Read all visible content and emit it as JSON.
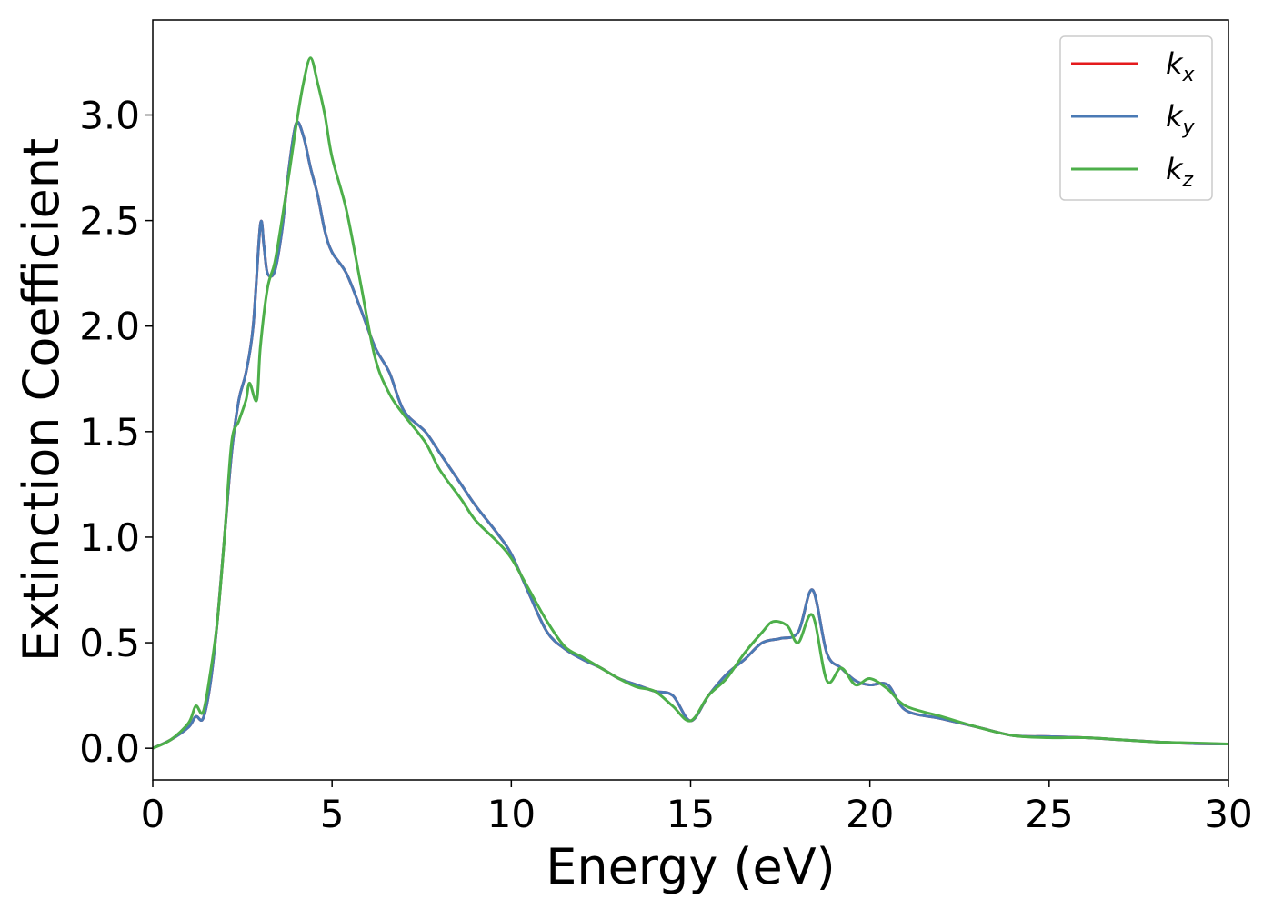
{
  "chart_data": {
    "type": "line",
    "title": "",
    "xlabel": "Energy (eV)",
    "ylabel": "Extinction Coefficient",
    "xlim": [
      0,
      30
    ],
    "ylim": [
      -0.15,
      3.45
    ],
    "xticks": [
      0,
      5,
      10,
      15,
      20,
      25,
      30
    ],
    "xtick_labels": [
      "0",
      "5",
      "10",
      "15",
      "20",
      "25",
      "30"
    ],
    "yticks": [
      0.0,
      0.5,
      1.0,
      1.5,
      2.0,
      2.5,
      3.0
    ],
    "ytick_labels": [
      "0.0",
      "0.5",
      "1.0",
      "1.5",
      "2.0",
      "2.5",
      "3.0"
    ],
    "grid": false,
    "legend_position": "top-right",
    "series": [
      {
        "name": "k_x",
        "legend_base": "k",
        "legend_sub": "x",
        "color": "#e41a1c",
        "x": [
          0,
          0.5,
          1.0,
          1.2,
          1.4,
          1.6,
          1.8,
          2.0,
          2.2,
          2.4,
          2.6,
          2.8,
          3.0,
          3.1,
          3.2,
          3.4,
          3.6,
          3.8,
          4.0,
          4.2,
          4.4,
          4.6,
          4.8,
          5.0,
          5.4,
          5.8,
          6.2,
          6.6,
          7.0,
          7.6,
          8.0,
          8.6,
          9.0,
          9.6,
          10.0,
          10.5,
          11.0,
          11.5,
          12.0,
          12.5,
          13.0,
          13.5,
          14.0,
          14.5,
          15.0,
          15.5,
          16.0,
          16.5,
          17.0,
          17.5,
          18.0,
          18.4,
          18.8,
          19.2,
          19.6,
          20.0,
          20.5,
          21.0,
          22.0,
          23.0,
          24.0,
          25.0,
          26.0,
          27.0,
          28.0,
          29.0,
          30.0
        ],
        "y": [
          0.0,
          0.04,
          0.1,
          0.15,
          0.14,
          0.3,
          0.6,
          1.0,
          1.4,
          1.65,
          1.78,
          2.0,
          2.48,
          2.38,
          2.25,
          2.26,
          2.45,
          2.75,
          2.96,
          2.9,
          2.75,
          2.62,
          2.45,
          2.35,
          2.25,
          2.08,
          1.9,
          1.78,
          1.6,
          1.5,
          1.4,
          1.25,
          1.15,
          1.02,
          0.92,
          0.73,
          0.55,
          0.47,
          0.42,
          0.38,
          0.33,
          0.3,
          0.27,
          0.25,
          0.13,
          0.25,
          0.35,
          0.42,
          0.5,
          0.52,
          0.55,
          0.75,
          0.45,
          0.38,
          0.32,
          0.3,
          0.3,
          0.18,
          0.14,
          0.1,
          0.06,
          0.055,
          0.05,
          0.04,
          0.03,
          0.022,
          0.02
        ]
      },
      {
        "name": "k_y",
        "legend_base": "k",
        "legend_sub": "y",
        "color": "#4a7ab5",
        "x": [
          0,
          0.5,
          1.0,
          1.2,
          1.4,
          1.6,
          1.8,
          2.0,
          2.2,
          2.4,
          2.6,
          2.8,
          3.0,
          3.1,
          3.2,
          3.4,
          3.6,
          3.8,
          4.0,
          4.2,
          4.4,
          4.6,
          4.8,
          5.0,
          5.4,
          5.8,
          6.2,
          6.6,
          7.0,
          7.6,
          8.0,
          8.6,
          9.0,
          9.6,
          10.0,
          10.5,
          11.0,
          11.5,
          12.0,
          12.5,
          13.0,
          13.5,
          14.0,
          14.5,
          15.0,
          15.5,
          16.0,
          16.5,
          17.0,
          17.5,
          18.0,
          18.4,
          18.8,
          19.2,
          19.6,
          20.0,
          20.5,
          21.0,
          22.0,
          23.0,
          24.0,
          25.0,
          26.0,
          27.0,
          28.0,
          29.0,
          30.0
        ],
        "y": [
          0.0,
          0.04,
          0.1,
          0.15,
          0.14,
          0.3,
          0.6,
          1.0,
          1.4,
          1.65,
          1.78,
          2.0,
          2.48,
          2.38,
          2.25,
          2.26,
          2.45,
          2.75,
          2.96,
          2.9,
          2.75,
          2.62,
          2.45,
          2.35,
          2.25,
          2.08,
          1.9,
          1.78,
          1.6,
          1.5,
          1.4,
          1.25,
          1.15,
          1.02,
          0.92,
          0.73,
          0.55,
          0.47,
          0.42,
          0.38,
          0.33,
          0.3,
          0.27,
          0.25,
          0.13,
          0.25,
          0.35,
          0.42,
          0.5,
          0.52,
          0.55,
          0.75,
          0.45,
          0.38,
          0.32,
          0.3,
          0.3,
          0.18,
          0.14,
          0.1,
          0.06,
          0.055,
          0.05,
          0.04,
          0.03,
          0.022,
          0.02
        ]
      },
      {
        "name": "k_z",
        "legend_base": "k",
        "legend_sub": "z",
        "color": "#4daf4a",
        "x": [
          0,
          0.5,
          1.0,
          1.2,
          1.4,
          1.6,
          1.8,
          2.0,
          2.2,
          2.4,
          2.6,
          2.7,
          2.9,
          3.0,
          3.2,
          3.4,
          3.6,
          3.8,
          4.0,
          4.2,
          4.4,
          4.6,
          4.8,
          5.0,
          5.4,
          5.8,
          6.2,
          6.6,
          7.0,
          7.6,
          8.0,
          8.6,
          9.0,
          9.6,
          10.0,
          10.5,
          11.0,
          11.5,
          12.0,
          12.5,
          13.0,
          13.5,
          14.0,
          14.5,
          15.0,
          15.5,
          16.0,
          16.5,
          17.0,
          17.3,
          17.7,
          18.0,
          18.4,
          18.8,
          19.2,
          19.6,
          20.0,
          20.5,
          21.0,
          22.0,
          23.0,
          24.0,
          25.0,
          26.0,
          27.0,
          28.0,
          29.0,
          30.0
        ],
        "y": [
          0.0,
          0.04,
          0.12,
          0.2,
          0.17,
          0.35,
          0.6,
          1.0,
          1.45,
          1.55,
          1.65,
          1.73,
          1.65,
          1.9,
          2.18,
          2.3,
          2.5,
          2.72,
          2.95,
          3.15,
          3.27,
          3.15,
          3.0,
          2.8,
          2.55,
          2.2,
          1.85,
          1.68,
          1.58,
          1.45,
          1.32,
          1.18,
          1.08,
          0.98,
          0.9,
          0.75,
          0.6,
          0.48,
          0.43,
          0.38,
          0.33,
          0.29,
          0.27,
          0.2,
          0.13,
          0.25,
          0.33,
          0.45,
          0.55,
          0.6,
          0.58,
          0.5,
          0.63,
          0.32,
          0.38,
          0.3,
          0.33,
          0.28,
          0.2,
          0.15,
          0.1,
          0.06,
          0.05,
          0.05,
          0.04,
          0.03,
          0.025,
          0.02
        ]
      }
    ]
  }
}
